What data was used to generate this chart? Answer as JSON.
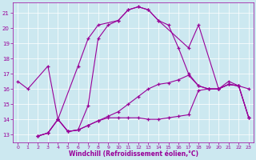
{
  "bg_color": "#cce8f0",
  "line_color": "#990099",
  "xlabel": "Windchill (Refroidissement éolien,°C)",
  "xlim": [
    -0.5,
    23.5
  ],
  "ylim": [
    12.5,
    21.7
  ],
  "xticks": [
    0,
    1,
    2,
    3,
    4,
    5,
    6,
    7,
    8,
    9,
    10,
    11,
    12,
    13,
    14,
    15,
    16,
    17,
    18,
    19,
    20,
    21,
    22,
    23
  ],
  "yticks": [
    13,
    14,
    15,
    16,
    17,
    18,
    19,
    20,
    21
  ],
  "curve1_x": [
    0,
    1,
    3,
    4,
    6,
    7,
    8,
    10,
    11,
    12,
    13,
    14,
    17,
    18,
    20,
    21,
    22,
    23
  ],
  "curve1_y": [
    16.5,
    16.0,
    17.5,
    14.0,
    17.5,
    19.3,
    20.2,
    20.5,
    21.2,
    21.4,
    21.2,
    20.5,
    18.7,
    20.2,
    16.0,
    16.5,
    16.2,
    16.0
  ],
  "curve2_x": [
    2,
    3,
    4,
    5,
    6,
    7,
    8,
    9,
    10,
    11,
    12,
    13,
    14,
    15,
    16,
    17,
    18,
    19,
    20,
    21,
    22,
    23
  ],
  "curve2_y": [
    12.9,
    13.1,
    14.0,
    13.2,
    13.3,
    14.9,
    19.3,
    20.2,
    20.5,
    21.2,
    21.4,
    21.2,
    20.5,
    20.2,
    18.7,
    17.0,
    16.2,
    16.0,
    16.0,
    16.3,
    16.2,
    14.1
  ],
  "curve3_x": [
    2,
    3,
    4,
    5,
    6,
    7,
    8,
    9,
    10,
    11,
    12,
    13,
    14,
    15,
    16,
    17,
    18,
    19,
    20,
    21,
    22,
    23
  ],
  "curve3_y": [
    12.9,
    13.1,
    14.0,
    13.2,
    13.3,
    13.6,
    13.9,
    14.1,
    14.1,
    14.1,
    14.1,
    14.0,
    14.0,
    14.1,
    14.2,
    14.3,
    15.9,
    16.0,
    16.0,
    16.3,
    16.2,
    14.1
  ],
  "curve4_x": [
    2,
    3,
    4,
    5,
    6,
    7,
    8,
    9,
    10,
    11,
    12,
    13,
    14,
    15,
    16,
    17,
    18,
    19,
    20,
    21,
    22,
    23
  ],
  "curve4_y": [
    12.9,
    13.1,
    14.0,
    13.2,
    13.3,
    13.6,
    13.9,
    14.2,
    14.5,
    15.0,
    15.5,
    16.0,
    16.3,
    16.4,
    16.6,
    16.9,
    16.2,
    16.0,
    16.0,
    16.3,
    16.2,
    14.1
  ]
}
